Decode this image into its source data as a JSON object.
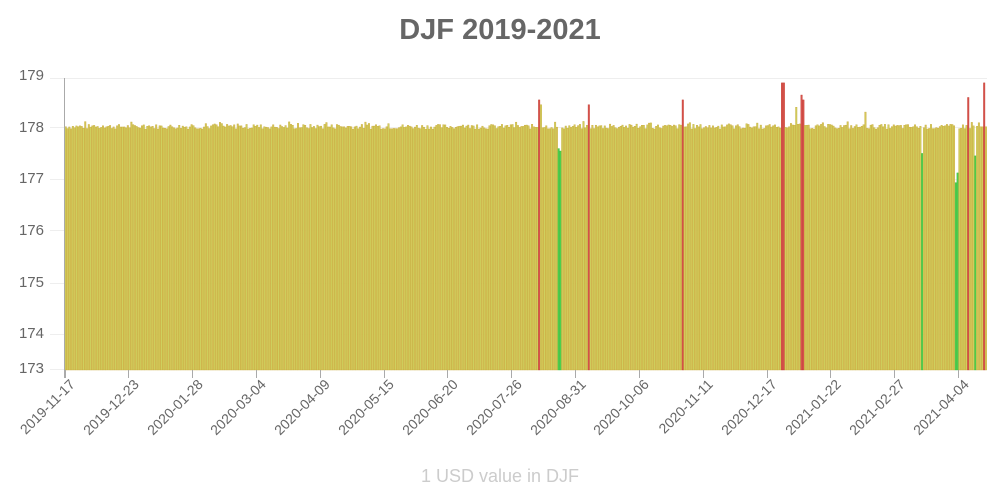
{
  "chart_data": {
    "type": "bar",
    "title": "DJF 2019-2021",
    "xlabel": "1 USD value in DJF",
    "ylabel": "",
    "ylim": [
      173,
      179
    ],
    "yticks": [
      173,
      174,
      175,
      176,
      177,
      178,
      179
    ],
    "xticks": [
      "2019-11-17",
      "2019-12-23",
      "2020-01-28",
      "2020-03-04",
      "2020-04-09",
      "2020-05-15",
      "2020-06-20",
      "2020-07-26",
      "2020-08-31",
      "2020-10-06",
      "2020-11-11",
      "2020-12-17",
      "2021-01-22",
      "2021-02-27",
      "2021-04-04"
    ],
    "start_date": "2019-11-17",
    "n_days": 520,
    "baseline_value": 178.0,
    "notable_points": [
      {
        "date": "2020-08-10",
        "value": 178.55,
        "color": "red"
      },
      {
        "date": "2020-08-11",
        "value": 178.45
      },
      {
        "date": "2020-08-21",
        "value": 177.55,
        "color": "green"
      },
      {
        "date": "2020-08-22",
        "value": 177.5,
        "color": "green"
      },
      {
        "date": "2020-09-07",
        "value": 178.45,
        "color": "red"
      },
      {
        "date": "2020-10-30",
        "value": 178.55,
        "color": "red"
      },
      {
        "date": "2020-12-25",
        "value": 178.9,
        "color": "red"
      },
      {
        "date": "2020-12-26",
        "value": 178.9,
        "color": "red"
      },
      {
        "date": "2021-01-02",
        "value": 178.4
      },
      {
        "date": "2021-01-05",
        "value": 178.65,
        "color": "red"
      },
      {
        "date": "2021-01-06",
        "value": 178.55,
        "color": "red"
      },
      {
        "date": "2021-02-10",
        "value": 178.3
      },
      {
        "date": "2021-03-14",
        "value": 177.45,
        "color": "green"
      },
      {
        "date": "2021-04-02",
        "value": 176.85,
        "color": "green"
      },
      {
        "date": "2021-04-03",
        "value": 177.05,
        "color": "green"
      },
      {
        "date": "2021-04-09",
        "value": 178.6,
        "color": "red"
      },
      {
        "date": "2021-04-13",
        "value": 177.4,
        "color": "green"
      },
      {
        "date": "2021-04-18",
        "value": 178.9,
        "color": "red"
      }
    ],
    "colors": {
      "normal": "#d4c85a",
      "normal_edge": "#c9a93a",
      "high": "#d9534f",
      "low": "#4cd04c"
    },
    "grid": true,
    "legend": "none"
  }
}
